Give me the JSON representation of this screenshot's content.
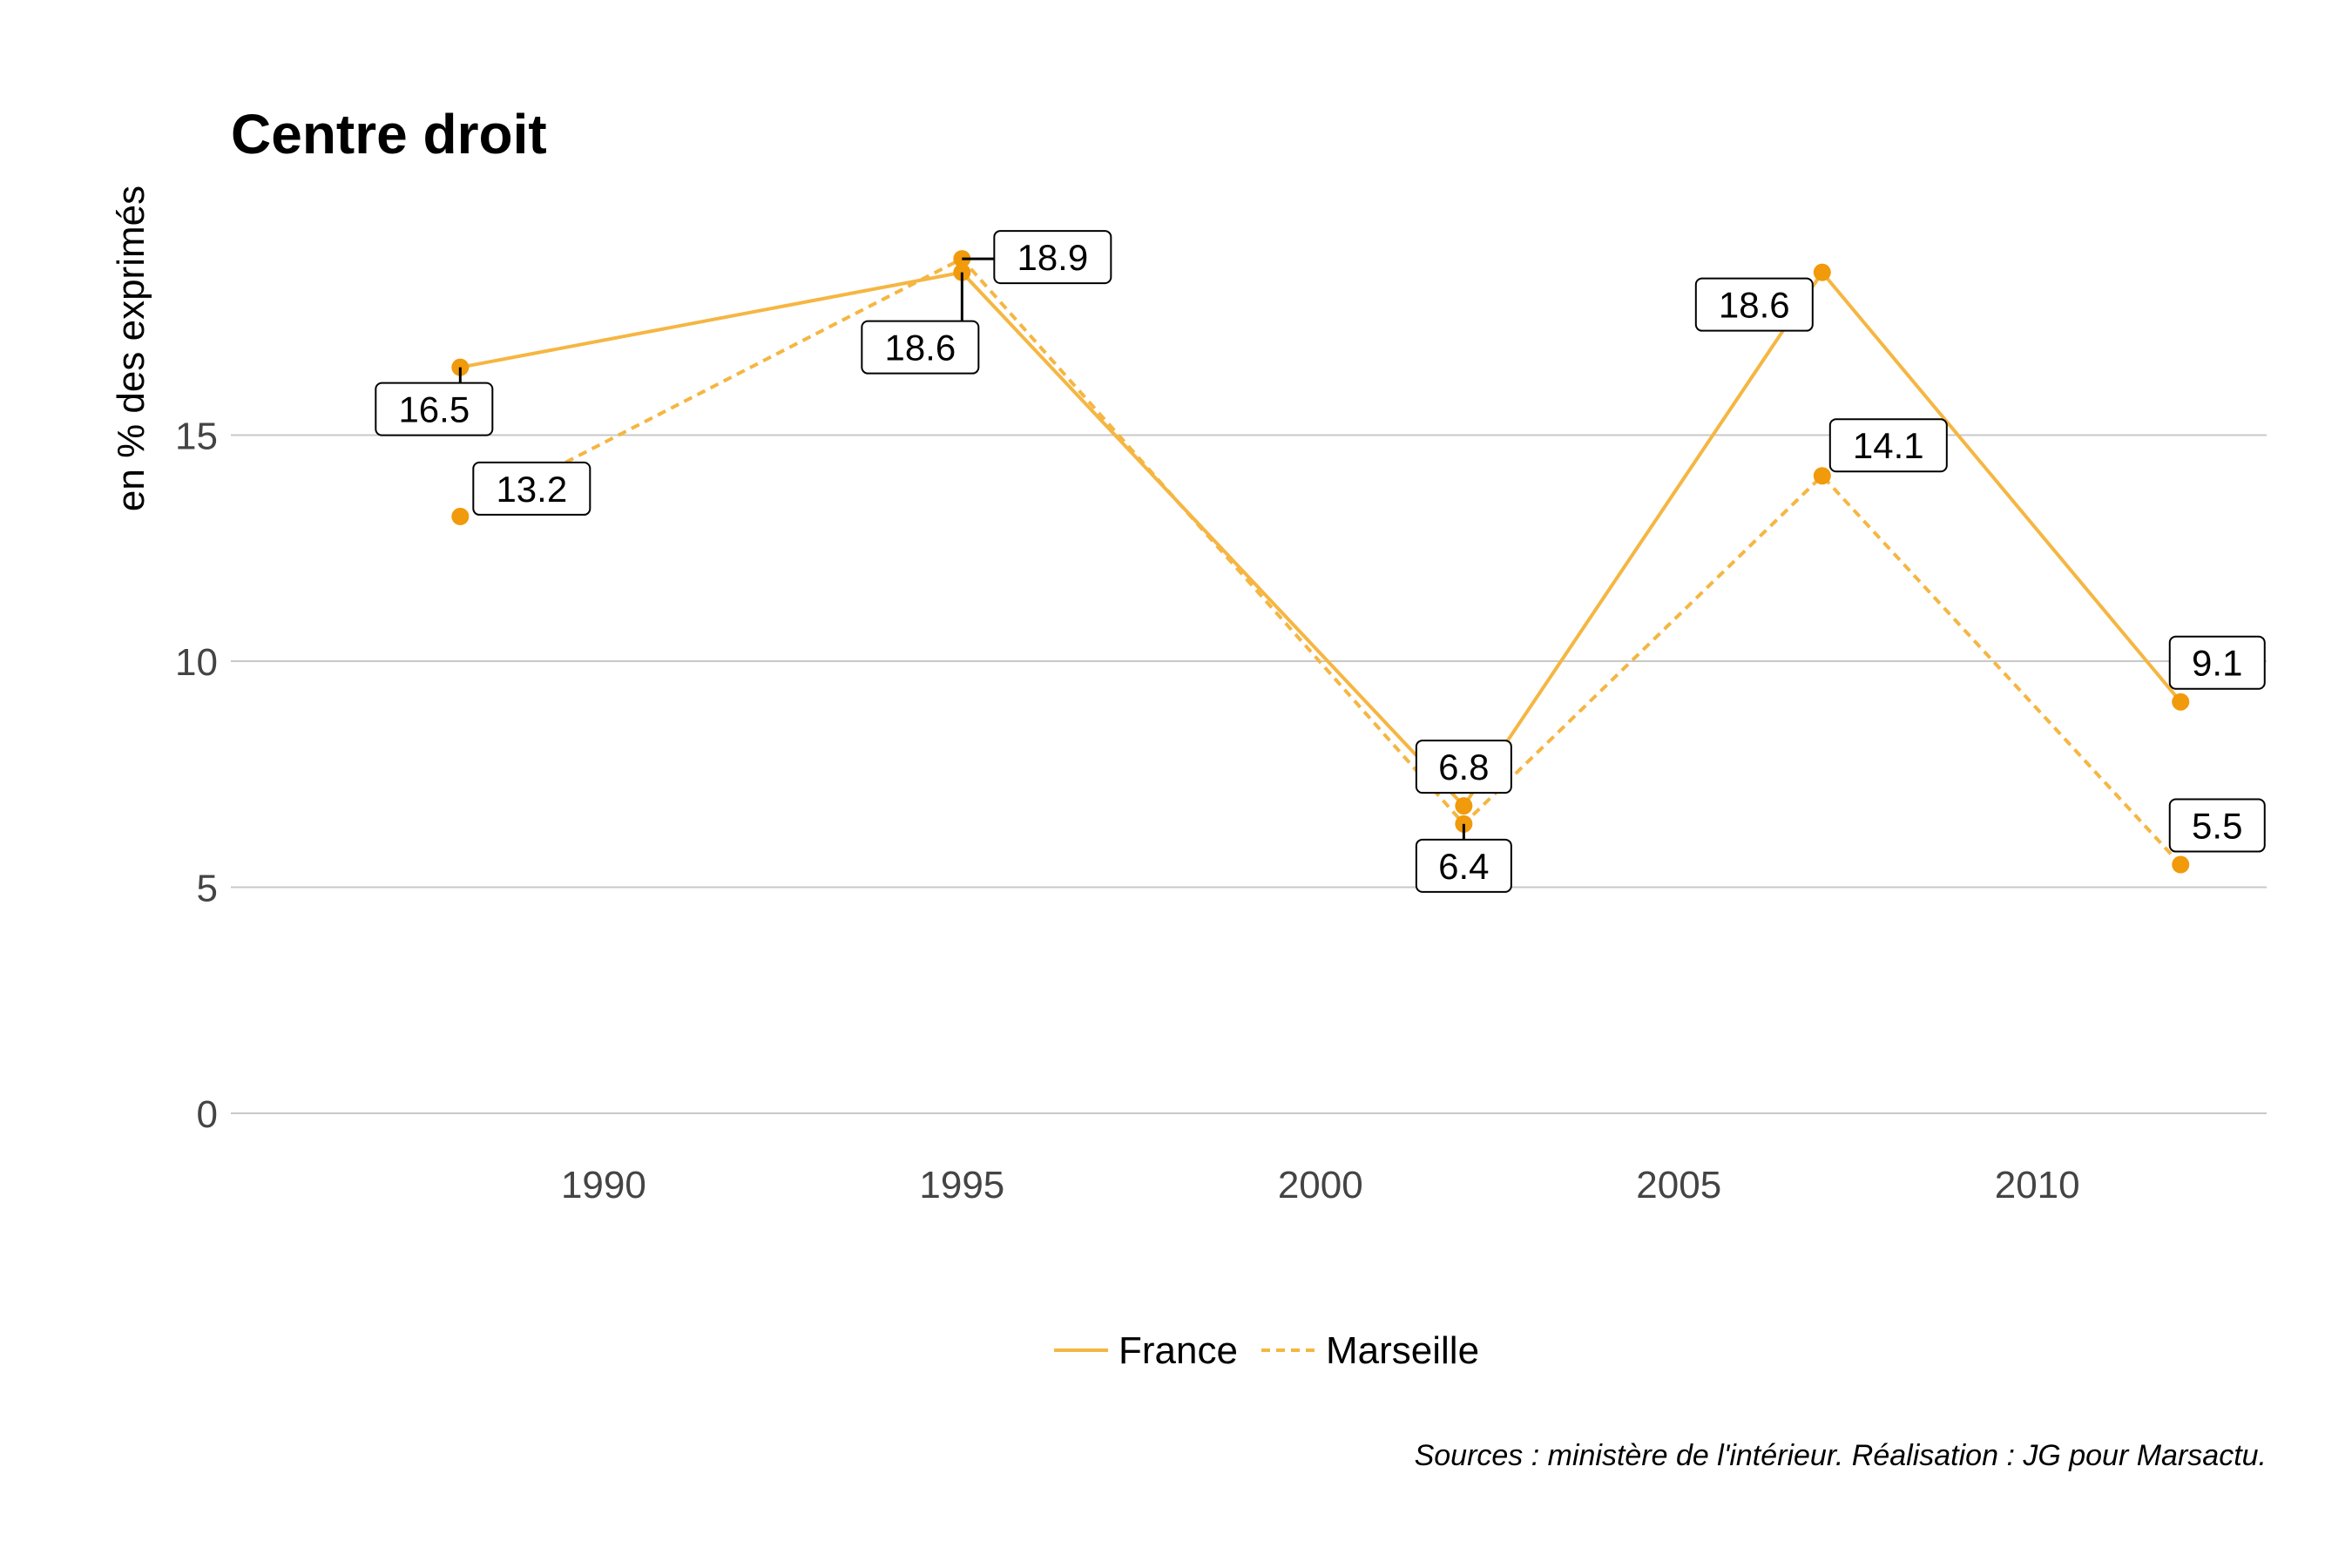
{
  "chart_data": {
    "type": "line",
    "title": "Centre droit",
    "xlabel": "",
    "ylabel": "en % des exprimés",
    "x": [
      1988,
      1995,
      2002,
      2007,
      2012
    ],
    "xlim": [
      1984.8,
      2013.2
    ],
    "ylim": [
      0,
      20
    ],
    "xticks": [
      1990,
      1995,
      2000,
      2005,
      2010
    ],
    "yticks": [
      0,
      5,
      10,
      15
    ],
    "grid": "horizontal",
    "legend": "bottom",
    "series": [
      {
        "name": "France",
        "values": [
          16.5,
          18.6,
          6.8,
          18.6,
          9.1
        ],
        "color": "#f5b642",
        "dash": "solid"
      },
      {
        "name": "Marseille",
        "values": [
          13.2,
          18.9,
          6.4,
          14.1,
          5.5
        ],
        "color": "#f5b642",
        "dash": "dashed"
      }
    ],
    "point_color": "#f09a0c",
    "caption": "Sources : ministère de l'intérieur. Réalisation : JG pour Marsactu."
  }
}
